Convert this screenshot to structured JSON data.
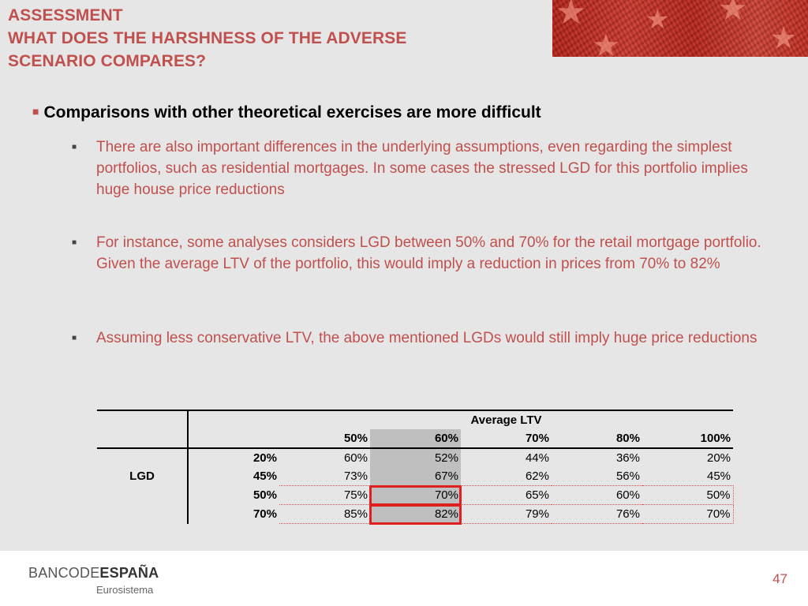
{
  "title": {
    "line1": "ASSESSMENT",
    "line2": "WHAT DOES THE HARSHNESS OF THE ADVERSE",
    "line3": "SCENARIO COMPARES?"
  },
  "main_bullet": "Comparisons with other theoretical exercises are more difficult",
  "sub_bullets": [
    "There are also important differences in the underlying assumptions, even regarding the simplest portfolios, such as residential mortgages. In some cases the stressed LGD for this portfolio implies huge house price reductions",
    "For instance, some analyses considers LGD between 50% and 70% for the retail mortgage portfolio. Given the average LTV of the portfolio, this would imply a reduction in prices from 70% to 82%",
    "Assuming less conservative LTV, the above mentioned LGDs would still imply huge price reductions"
  ],
  "table": {
    "header_group": "Average LTV",
    "row_group": "LGD",
    "columns": [
      "50%",
      "60%",
      "70%",
      "80%",
      "100%"
    ],
    "rows": [
      {
        "lgd": "20%",
        "values": [
          "60%",
          "52%",
          "44%",
          "36%",
          "20%"
        ]
      },
      {
        "lgd": "45%",
        "values": [
          "73%",
          "67%",
          "62%",
          "56%",
          "45%"
        ]
      },
      {
        "lgd": "50%",
        "values": [
          "75%",
          "70%",
          "65%",
          "60%",
          "50%"
        ]
      },
      {
        "lgd": "70%",
        "values": [
          "85%",
          "82%",
          "79%",
          "76%",
          "70%"
        ]
      }
    ]
  },
  "footer": {
    "logo_left": "BANCO",
    "logo_mid": "DE",
    "logo_right": "ESPAÑA",
    "logo_sub": "Eurosistema"
  },
  "page_number": "47",
  "colors": {
    "accent": "#c0504d",
    "highlight": "#e02020",
    "shade": "#bfbfbf"
  }
}
